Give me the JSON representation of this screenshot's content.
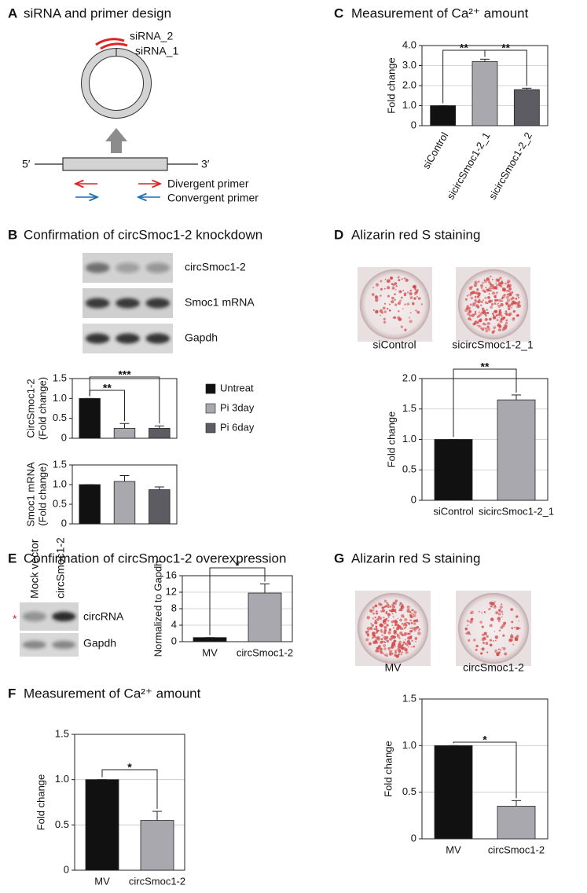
{
  "panels": {
    "A": {
      "letter": "A",
      "title": "siRNA and primer design",
      "labels": [
        "siRNA_2",
        "siRNA_1",
        "5′",
        "3′",
        "Divergent primer",
        "Convergent primer"
      ]
    },
    "B": {
      "letter": "B",
      "title": "Confirmation of circSmoc1-2 knockdown",
      "blot_labels": [
        "circSmoc1-2",
        "Smoc1 mRNA",
        "Gapdh"
      ]
    },
    "C": {
      "letter": "C",
      "title": "Measurement of Ca²⁺ amount"
    },
    "D": {
      "letter": "D",
      "title": "Alizarin red S staining",
      "image_labels": [
        "siControl",
        "sicircSmoc1-2_1"
      ]
    },
    "E": {
      "letter": "E",
      "title": "Confirmation of circSmoc1-2 overexpression",
      "blot_lanes": [
        "Mock vector",
        "circSmoc1-2"
      ],
      "blot_labels": [
        "circRNA",
        "Gapdh"
      ],
      "marker": "*"
    },
    "F": {
      "letter": "F",
      "title": "Measurement of Ca²⁺ amount"
    },
    "G": {
      "letter": "G",
      "title": "Alizarin red S staining",
      "image_labels": [
        "MV",
        "circSmoc1-2"
      ]
    }
  },
  "chart_data": [
    {
      "type": "bar",
      "ylabel": [
        "CircSmoc1-2",
        "(Fold change)"
      ],
      "categories": [
        "Untreat",
        "Pi 3day",
        "Pi 6day"
      ],
      "legend": "right",
      "values": [
        1.0,
        0.25,
        0.25
      ],
      "errors": [
        0,
        0.12,
        0.06
      ],
      "colors": [
        "#111111",
        "#a8a8ae",
        "#5c5c62"
      ],
      "ylim": [
        0,
        1.5
      ],
      "yticks": [
        0,
        0.5,
        {
          "value": 1,
          "label": "1.0"
        },
        1.5
      ],
      "grid": false,
      "annotations": [
        "**",
        "***"
      ]
    },
    {
      "type": "bar",
      "ylabel": [
        "Smoc1 mRNA",
        "(Fold change)"
      ],
      "values": [
        1.0,
        1.08,
        0.87
      ],
      "errors": [
        0,
        0.15,
        0.07
      ],
      "colors": [
        "#111111",
        "#a8a8ae",
        "#5c5c62"
      ],
      "ylim": [
        0,
        1.5
      ],
      "yticks": [
        0,
        0.5,
        {
          "value": 1,
          "label": "1.0"
        },
        1.5
      ],
      "grid": false
    },
    {
      "type": "bar",
      "ylabel": [
        "Fold change"
      ],
      "categories": [
        "siControl",
        "sicircSmoc1-2_1",
        "sicircSmoc1-2_2"
      ],
      "values": [
        1.0,
        3.2,
        1.8
      ],
      "errors": [
        0,
        0.12,
        0.07
      ],
      "colors": [
        "#111111",
        "#a8a8ae",
        "#5c5c62"
      ],
      "ylim": [
        0,
        4
      ],
      "yticks": [
        0,
        {
          "value": 1,
          "label": "1.0"
        },
        {
          "value": 2,
          "label": "2.0"
        },
        {
          "value": 3,
          "label": "3.0"
        },
        {
          "value": 4,
          "label": "4.0"
        }
      ],
      "grid": true,
      "annotations": [
        "**",
        "**"
      ]
    },
    {
      "type": "bar",
      "ylabel": [
        "Fold change"
      ],
      "categories": [
        "siControl",
        "sicircSmoc1-2_1"
      ],
      "values": [
        1.0,
        1.65
      ],
      "errors": [
        0,
        0.08
      ],
      "colors": [
        "#111111",
        "#a8a8ae"
      ],
      "ylim": [
        0,
        2
      ],
      "yticks": [
        0,
        0.5,
        {
          "value": 1,
          "label": "1.0"
        },
        1.5,
        {
          "value": 2,
          "label": "2.0"
        }
      ],
      "grid": true,
      "annotations": [
        "**"
      ]
    },
    {
      "type": "bar",
      "ylabel": [
        "Normalized to Gapdh"
      ],
      "categories": [
        "MV",
        "circSmoc1-2"
      ],
      "values": [
        1.0,
        11.8
      ],
      "errors": [
        0,
        2.2
      ],
      "colors": [
        "#111111",
        "#a8a8ae"
      ],
      "ylim": [
        0,
        16
      ],
      "yticks": [
        0,
        4,
        8,
        12,
        16
      ],
      "grid": true,
      "annotations": [
        "*"
      ]
    },
    {
      "type": "bar",
      "ylabel": [
        "Fold change"
      ],
      "categories": [
        "MV",
        "circSmoc1-2"
      ],
      "values": [
        1.0,
        0.55
      ],
      "errors": [
        0,
        0.1
      ],
      "colors": [
        "#111111",
        "#a8a8ae"
      ],
      "ylim": [
        0,
        1.5
      ],
      "yticks": [
        0,
        0.5,
        {
          "value": 1,
          "label": "1.0"
        },
        1.5
      ],
      "grid": true,
      "annotations": [
        "*"
      ]
    },
    {
      "type": "bar",
      "ylabel": [
        "Fold change"
      ],
      "categories": [
        "MV",
        "circSmoc1-2"
      ],
      "values": [
        1.0,
        0.35
      ],
      "errors": [
        0,
        0.06
      ],
      "colors": [
        "#111111",
        "#a8a8ae"
      ],
      "ylim": [
        0,
        1.5
      ],
      "yticks": [
        0,
        0.5,
        {
          "value": 1,
          "label": "1.0"
        },
        1.5
      ],
      "grid": true,
      "annotations": [
        "*"
      ]
    }
  ]
}
